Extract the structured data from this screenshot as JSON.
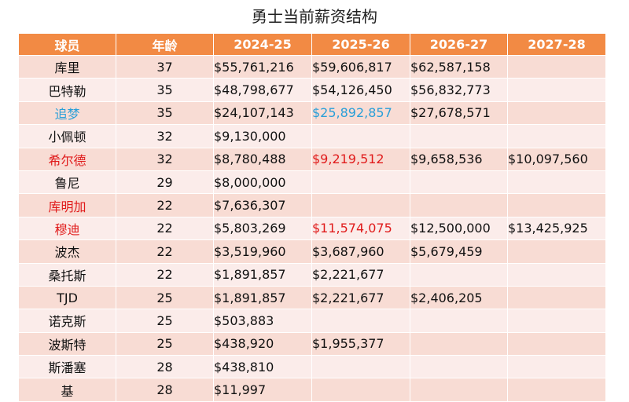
{
  "title": "勇士当前薪资结构",
  "headers": [
    "球员",
    "年龄",
    "2024-25",
    "2025-26",
    "2026-27",
    "2027-28"
  ],
  "colors": {
    "header_bg": "#f28a44",
    "row_odd": "#f8dcd4",
    "row_even": "#fbecea",
    "red_text": "#e01b1b",
    "blue_text": "#2a9fd8"
  },
  "rows": [
    {
      "name": "库里",
      "age": "37",
      "s2425": "$55,761,216",
      "s2526": "$59,606,817",
      "s2627": "$62,587,158",
      "s2728": ""
    },
    {
      "name": "巴特勒",
      "age": "35",
      "s2425": "$48,798,677",
      "s2526": "$54,126,450",
      "s2627": "$56,832,773",
      "s2728": ""
    },
    {
      "name": "追梦",
      "age": "35",
      "s2425": "$24,107,143",
      "s2526": "$25,892,857",
      "s2627": "$27,678,571",
      "s2728": ""
    },
    {
      "name": "小佩顿",
      "age": "32",
      "s2425": "$9,130,000",
      "s2526": "",
      "s2627": "",
      "s2728": ""
    },
    {
      "name": "希尔德",
      "age": "32",
      "s2425": "$8,780,488",
      "s2526": "$9,219,512",
      "s2627": "$9,658,536",
      "s2728": "$10,097,560"
    },
    {
      "name": "鲁尼",
      "age": "29",
      "s2425": "$8,000,000",
      "s2526": "",
      "s2627": "",
      "s2728": ""
    },
    {
      "name": "库明加",
      "age": "22",
      "s2425": "$7,636,307",
      "s2526": "",
      "s2627": "",
      "s2728": ""
    },
    {
      "name": "穆迪",
      "age": "22",
      "s2425": "$5,803,269",
      "s2526": "$11,574,075",
      "s2627": "$12,500,000",
      "s2728": "$13,425,925"
    },
    {
      "name": "波杰",
      "age": "22",
      "s2425": "$3,519,960",
      "s2526": "$3,687,960",
      "s2627": "$5,679,459",
      "s2728": ""
    },
    {
      "name": "桑托斯",
      "age": "22",
      "s2425": "$1,891,857",
      "s2526": "$2,221,677",
      "s2627": "",
      "s2728": ""
    },
    {
      "name": "TJD",
      "age": "25",
      "s2425": "$1,891,857",
      "s2526": "$2,221,677",
      "s2627": "$2,406,205",
      "s2728": ""
    },
    {
      "name": "诺克斯",
      "age": "25",
      "s2425": "$503,883",
      "s2526": "",
      "s2627": "",
      "s2728": ""
    },
    {
      "name": "波斯特",
      "age": "25",
      "s2425": "$438,920",
      "s2526": "$1,955,377",
      "s2627": "",
      "s2728": ""
    },
    {
      "name": "斯潘塞",
      "age": "28",
      "s2425": "$438,810",
      "s2526": "",
      "s2627": "",
      "s2728": ""
    },
    {
      "name": "基",
      "age": "28",
      "s2425": "$11,997",
      "s2526": "",
      "s2627": "",
      "s2728": ""
    }
  ]
}
